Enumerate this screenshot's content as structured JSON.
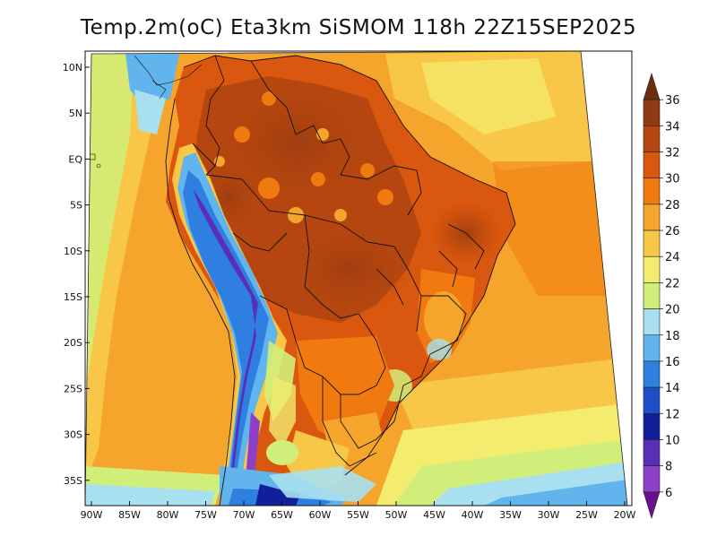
{
  "title": "Temp.2m(oC) Eta3km SiSMOM 118h 22Z15SEP2025",
  "map": {
    "lat_labels": [
      "10N",
      "5N",
      "EQ",
      "5S",
      "10S",
      "15S",
      "20S",
      "25S",
      "30S",
      "35S"
    ],
    "lon_labels": [
      "90W",
      "85W",
      "80W",
      "75W",
      "70W",
      "65W",
      "60W",
      "55W",
      "50W",
      "45W",
      "40W",
      "35W",
      "30W",
      "25W",
      "20W"
    ]
  },
  "colorbar": {
    "labels": [
      "36",
      "34",
      "32",
      "30",
      "28",
      "26",
      "24",
      "22",
      "20",
      "18",
      "16",
      "14",
      "12",
      "10",
      "8",
      "6"
    ],
    "colors": [
      "#6b2e10",
      "#8f3a12",
      "#b5460f",
      "#d9570e",
      "#f07a10",
      "#f5a52c",
      "#f8c747",
      "#f3ec6e",
      "#d2ee7a",
      "#a8e0ef",
      "#62b5ec",
      "#2f7fe0",
      "#1f4fc8",
      "#10209a",
      "#5a2fb8",
      "#8e3fc7",
      "#6a0f8e"
    ]
  }
}
